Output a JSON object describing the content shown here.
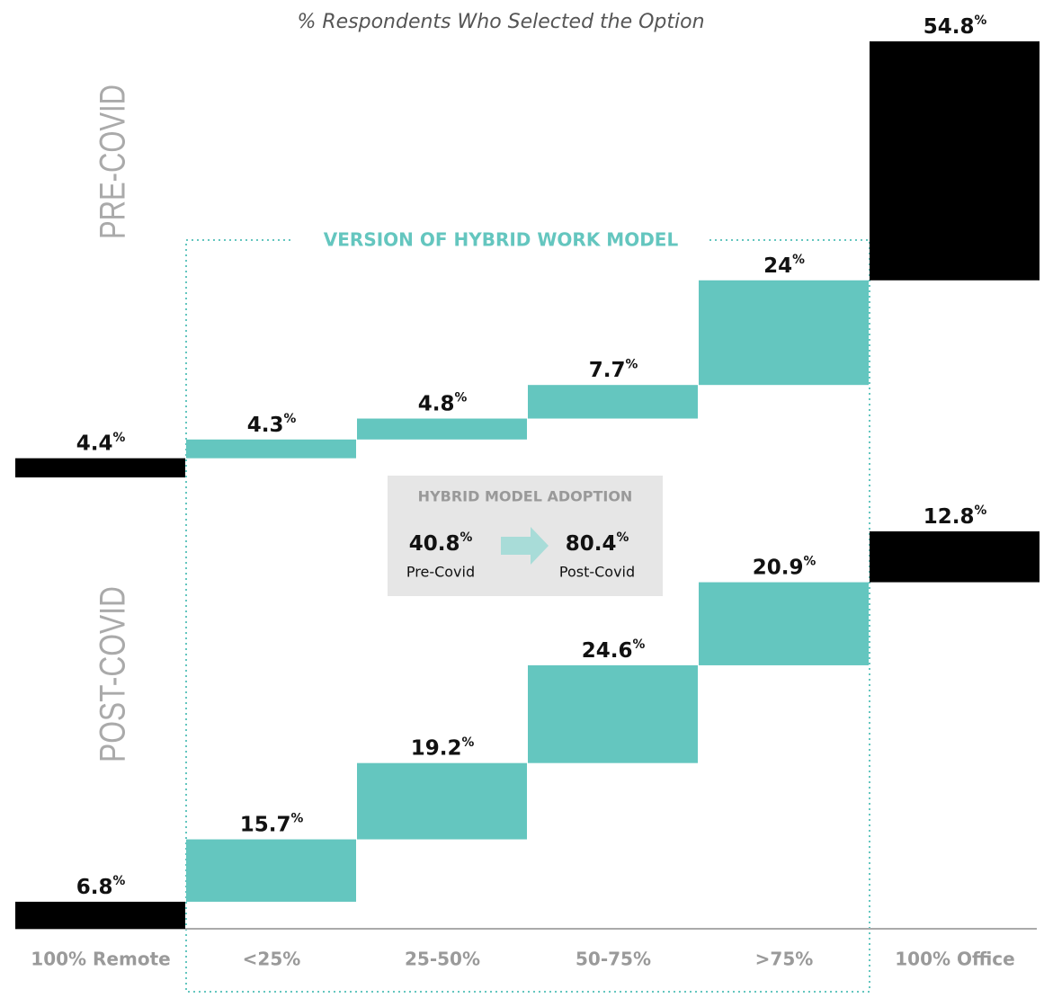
{
  "chart_data": {
    "type": "waterfall",
    "title": "% Respondents Who Selected the Option",
    "group_label": "VERSION OF HYBRID WORK MODEL",
    "categories": [
      "100% Remote",
      "<25%",
      "25-50%",
      "50-75%",
      ">75%",
      "100% Office"
    ],
    "colors": [
      "#000000",
      "#64c6bf",
      "#64c6bf",
      "#64c6bf",
      "#64c6bf",
      "#000000"
    ],
    "series": [
      {
        "name": "PRE-COVID",
        "values": [
          4.4,
          4.3,
          4.8,
          7.7,
          24,
          54.8
        ],
        "value_labels": [
          "4.4%",
          "4.3%",
          "4.8%",
          "7.7%",
          "24%",
          "54.8%"
        ]
      },
      {
        "name": "POST-COVID",
        "values": [
          6.8,
          15.7,
          19.2,
          24.6,
          20.9,
          12.8
        ],
        "value_labels": [
          "6.8%",
          "15.7%",
          "19.2%",
          "24.6%",
          "20.9%",
          "12.8%"
        ]
      }
    ],
    "ylim": [
      0,
      100
    ],
    "callout": {
      "title": "HYBRID MODEL ADOPTION",
      "items": [
        {
          "value": 40.8,
          "value_label": "40.8%",
          "label": "Pre-Covid"
        },
        {
          "value": 80.4,
          "value_label": "80.4%",
          "label": "Post-Covid"
        }
      ]
    }
  }
}
